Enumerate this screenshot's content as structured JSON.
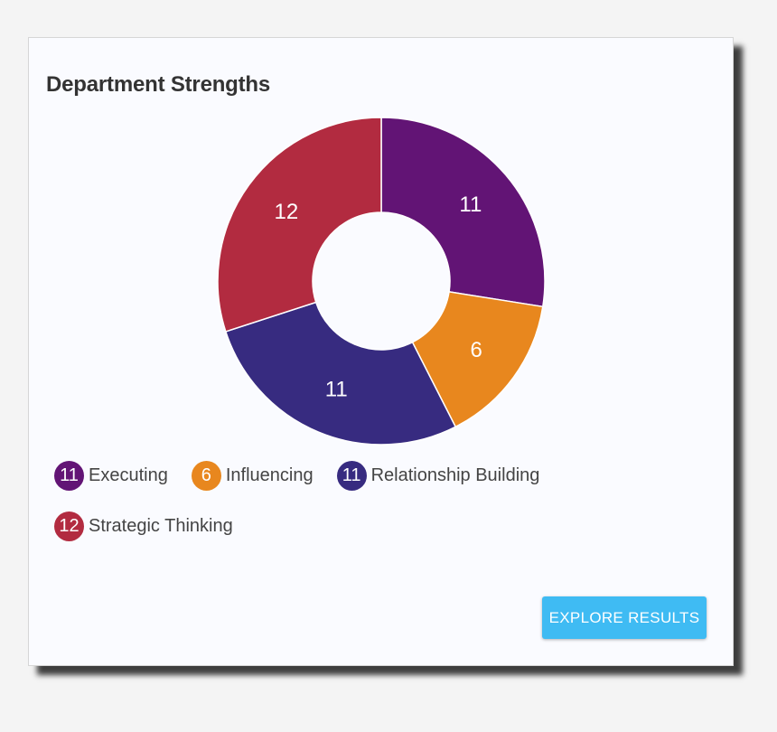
{
  "card": {
    "title": "Department Strengths"
  },
  "chart_data": {
    "type": "pie",
    "donut": true,
    "title": "Department Strengths",
    "categories": [
      "Executing",
      "Influencing",
      "Relationship Building",
      "Strategic Thinking"
    ],
    "values": [
      11,
      6,
      11,
      12
    ],
    "colors": [
      "#621475",
      "#e8871e",
      "#372b80",
      "#b22b40"
    ],
    "start_angle": "top, clockwise",
    "legend_position": "bottom"
  },
  "legend": {
    "items": [
      {
        "value": "11",
        "label": "Executing",
        "color": "#621475"
      },
      {
        "value": "6",
        "label": "Influencing",
        "color": "#e8871e"
      },
      {
        "value": "11",
        "label": "Relationship Building",
        "color": "#372b80"
      },
      {
        "value": "12",
        "label": "Strategic Thinking",
        "color": "#b22b40"
      }
    ]
  },
  "actions": {
    "explore_label": "EXPLORE RESULTS"
  }
}
